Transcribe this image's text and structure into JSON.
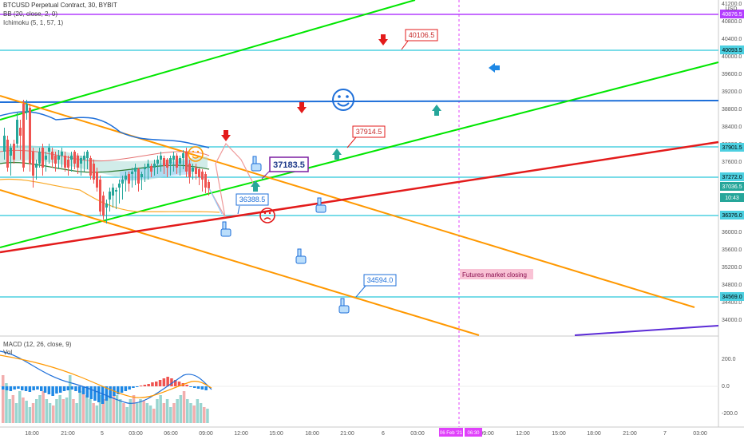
{
  "header": {
    "symbol_line": "BTCUSD Perpetual Contract, 30, BYBIT",
    "bb_legend": "BB (20, close, 2, 0)",
    "ichimoku_legend": "Ichimoku (5, 1, 57, 1)",
    "currency": "USD"
  },
  "price_axis": {
    "ticks": [
      "41200.0",
      "40800.0",
      "40400.0",
      "40000.0",
      "39600.0",
      "39200.0",
      "38800.0",
      "38400.0",
      "38000.0",
      "37600.0",
      "37200.0",
      "36800.0",
      "36400.0",
      "36000.0",
      "35600.0",
      "35200.0",
      "34800.0",
      "34400.0",
      "34000.0"
    ],
    "hline_labels": [
      "40876.5",
      "40093.5",
      "37901.5",
      "37272.0",
      "36376.0",
      "34569.0"
    ],
    "current_price": "37036.5",
    "countdown": "10:43"
  },
  "time_axis": {
    "ticks": [
      "18:00",
      "21:00",
      "5",
      "03:00",
      "06:00",
      "09:00",
      "12:00",
      "15:00",
      "18:00",
      "21:00",
      "6",
      "03:00",
      "06:00",
      "09:00",
      "12:00",
      "15:00",
      "18:00",
      "21:00",
      "7",
      "03:00"
    ],
    "highlight_labels": [
      "06 Feb '21",
      "06:30"
    ]
  },
  "annotations": {
    "callout_40106": "40106.5",
    "callout_37914": "37914.5",
    "callout_37183": "37183.5",
    "callout_36388": "36388.5",
    "callout_34594": "34594.0",
    "futures_note": "Futures market closing"
  },
  "macd": {
    "legend": "MACD (12, 26, close, 9)",
    "vol_label": "Vol",
    "ticks": [
      "200.0",
      "0.0",
      "-200.0"
    ]
  },
  "colors": {
    "up": "#26a69a",
    "down": "#ef5350",
    "cyan_line": "#4dd0e1",
    "blue_line": "#1e6fd9",
    "green_line": "#00e600",
    "orange_line": "#ff9800",
    "red_line": "#e31b1b",
    "purple_line": "#b33dff",
    "violet_line": "#5b2bd6"
  }
}
